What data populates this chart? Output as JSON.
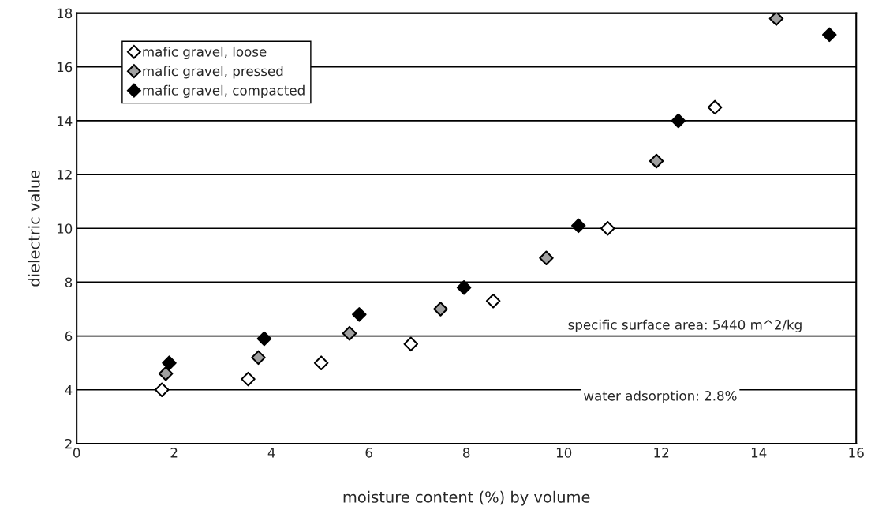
{
  "chart_data": {
    "type": "scatter",
    "xlabel": "moisture content (%) by volume",
    "ylabel": "dielectric value",
    "xlim": [
      0,
      16
    ],
    "xticks": [
      0,
      2,
      4,
      6,
      8,
      10,
      12,
      14,
      16
    ],
    "ylim": [
      2,
      18
    ],
    "yticks": [
      2,
      4,
      6,
      8,
      10,
      12,
      14,
      16,
      18
    ],
    "grid": "y",
    "legend": "top left",
    "marker": "diamond",
    "series": [
      {
        "name": "mafic gravel, loose",
        "color": "#ffffff",
        "x": [
          1.75,
          3.52,
          5.02,
          6.86,
          8.55,
          10.9,
          13.1
        ],
        "values": [
          4.0,
          4.4,
          5.0,
          5.7,
          7.3,
          10.0,
          14.5
        ]
      },
      {
        "name": "mafic gravel, pressed",
        "color": "#a0a0a0",
        "x": [
          1.83,
          3.73,
          5.6,
          7.47,
          9.64,
          11.9,
          14.36
        ],
        "values": [
          4.6,
          5.2,
          6.1,
          7.0,
          8.9,
          12.5,
          17.8
        ]
      },
      {
        "name": "mafic gravel, compacted",
        "color": "#000000",
        "x": [
          1.9,
          3.85,
          5.8,
          7.95,
          10.3,
          12.35,
          15.45
        ],
        "values": [
          5.0,
          5.9,
          6.8,
          7.8,
          10.1,
          14.0,
          17.2
        ]
      }
    ],
    "annotations": [
      "specific surface area: 5440 m^2/kg",
      "water adsorption: 2.8%"
    ]
  }
}
